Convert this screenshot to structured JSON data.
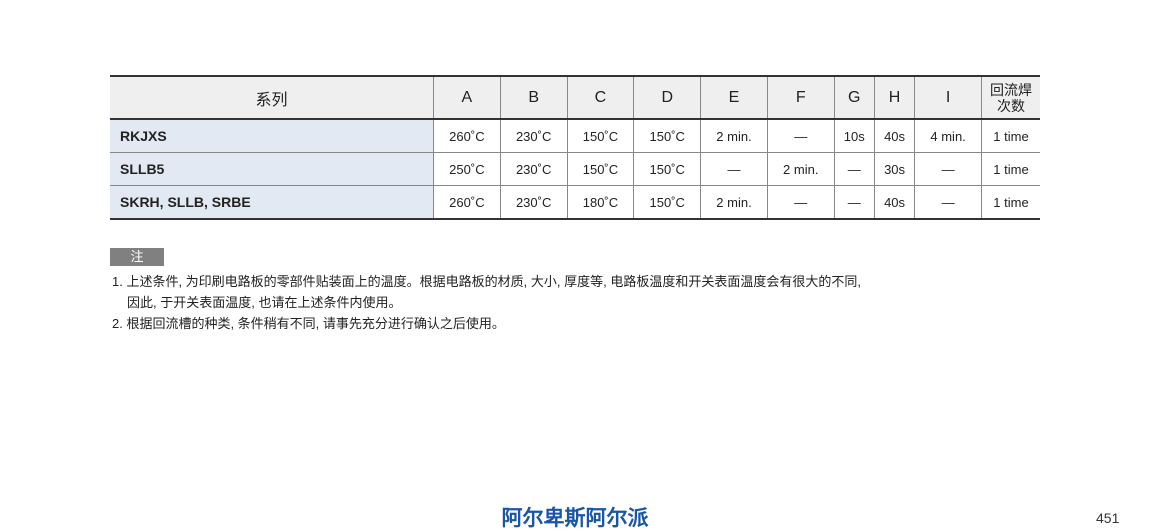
{
  "table": {
    "headers": [
      "系列",
      "A",
      "B",
      "C",
      "D",
      "E",
      "F",
      "G",
      "H",
      "I",
      "回流焊次数"
    ],
    "rows": [
      [
        "RKJXS",
        "260˚C",
        "230˚C",
        "150˚C",
        "150˚C",
        "2 min.",
        "—",
        "10s",
        "40s",
        "4 min.",
        "1 time"
      ],
      [
        "SLLB5",
        "250˚C",
        "230˚C",
        "150˚C",
        "150˚C",
        "—",
        "2 min.",
        "—",
        "30s",
        "—",
        "1 time"
      ],
      [
        "SKRH, SLLB, SRBE",
        "260˚C",
        "230˚C",
        "180˚C",
        "150˚C",
        "2 min.",
        "—",
        "—",
        "40s",
        "—",
        "1 time"
      ]
    ]
  },
  "notes": {
    "badge": "注",
    "lines": [
      "1. 上述条件, 为印刷电路板的零部件贴装面上的温度。根据电路板的材质, 大小, 厚度等, 电路板温度和开关表面温度会有很大的不同,",
      "因此, 于开关表面温度, 也请在上述条件内使用。",
      "2. 根据回流槽的种类, 条件稍有不同, 请事先充分进行确认之后使用。"
    ]
  },
  "footer": {
    "brand": "阿尔卑斯阿尔派",
    "page_number": "451",
    "brand_color": "#1a56a6"
  }
}
